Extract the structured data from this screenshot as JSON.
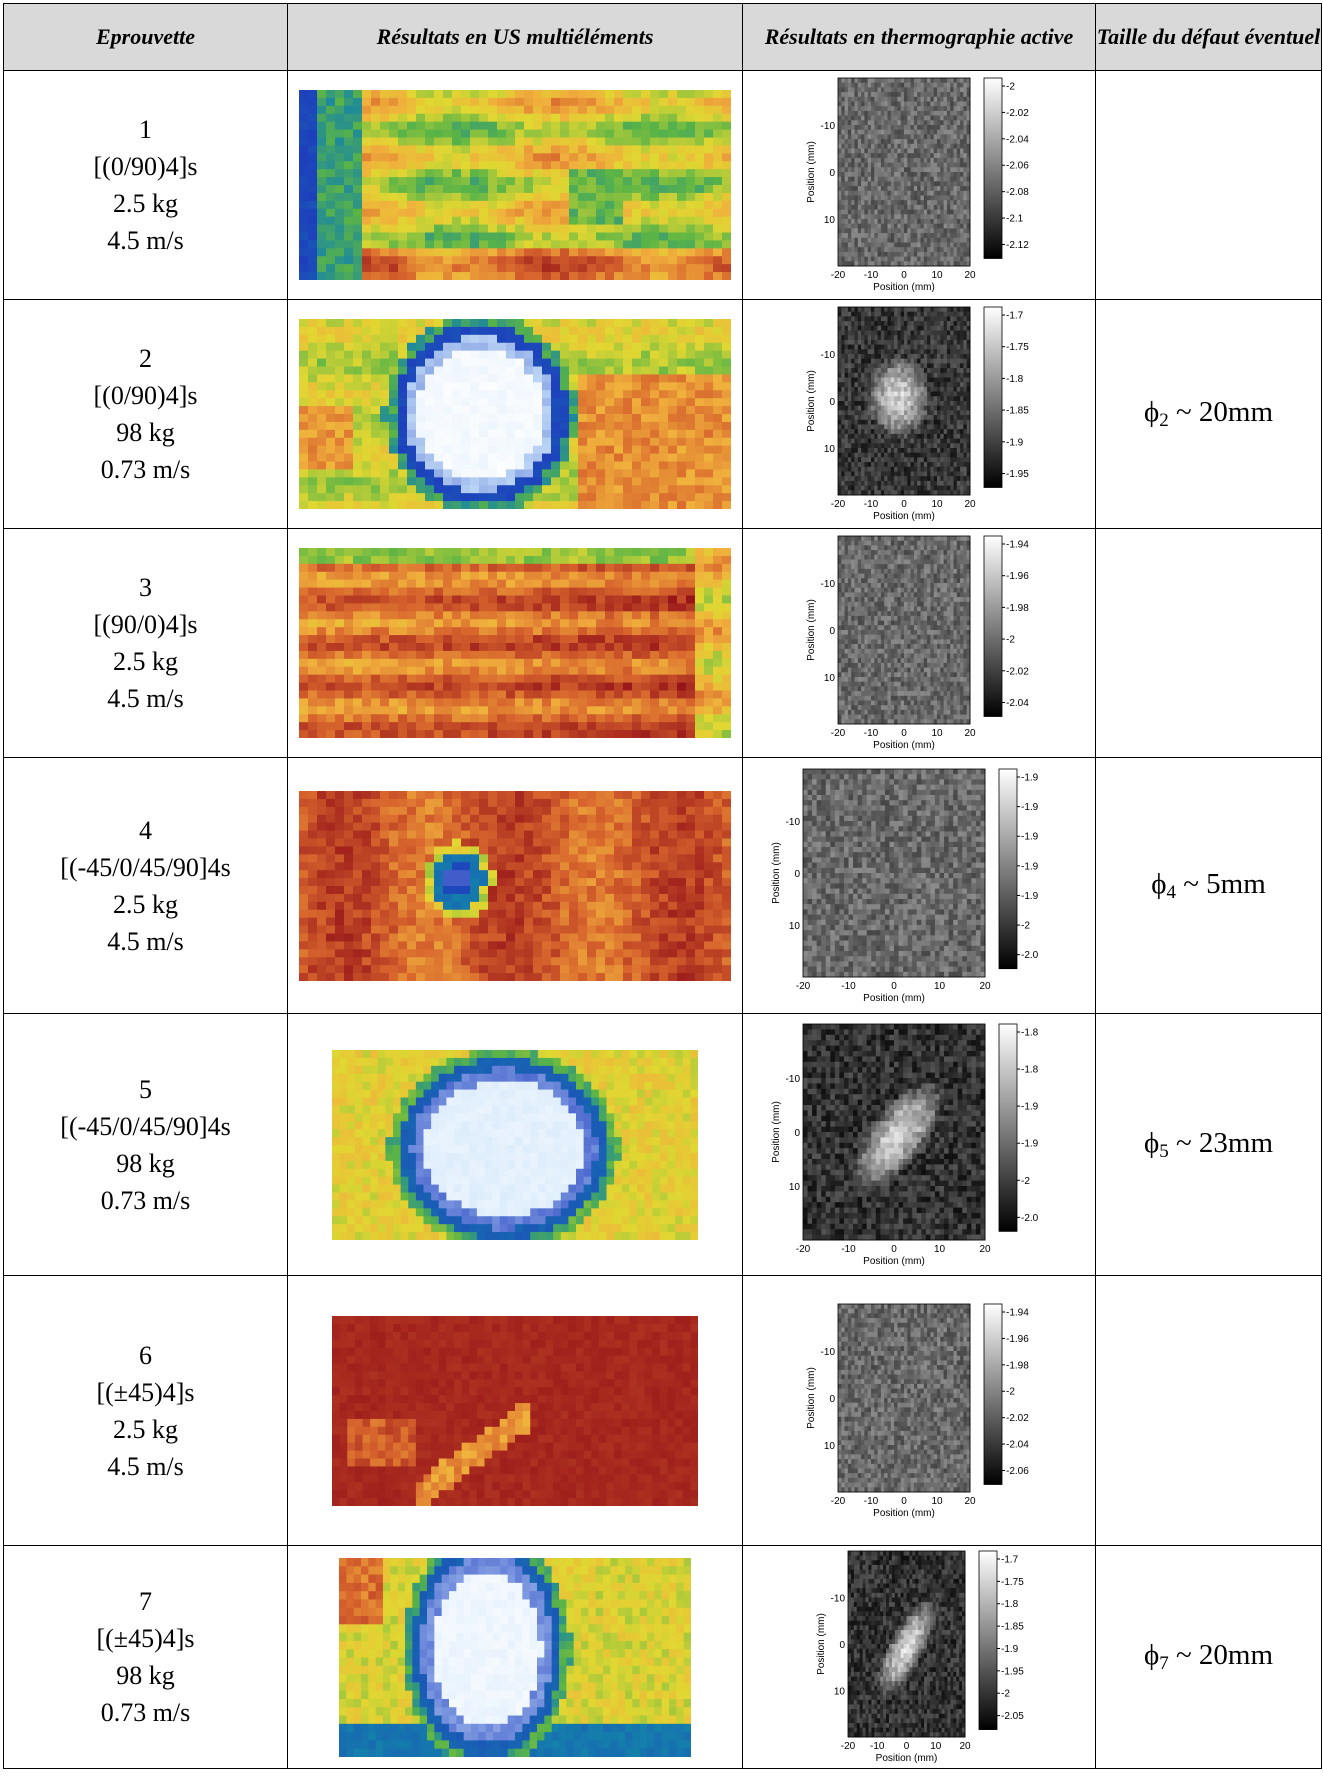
{
  "headers": {
    "specimen": "Eprouvette",
    "us": "Résultats en US multiéléments",
    "thermo": "Résultats en thermographie active",
    "defect": "Taille du défaut éventuel"
  },
  "rows": [
    {
      "num": "1",
      "layup": "[(0/90)4]s",
      "mass": "2.5 kg",
      "speed": "4.5 m/s",
      "us_pattern": "dispersed",
      "defect_symbol": "",
      "defect_sub": "",
      "defect_value": "",
      "thermo": {
        "xlabel": "Position (mm)",
        "ylabel": "Position (mm)",
        "xticks": [
          "-20",
          "-10",
          "0",
          "10",
          "20"
        ],
        "yticks": [
          "-10",
          "0",
          "10"
        ],
        "cbar_ticks": [
          "-2",
          "-2.02",
          "-2.04",
          "-2.06",
          "-2.08",
          "-2.1",
          "-2.12"
        ],
        "spot": "none"
      }
    },
    {
      "num": "2",
      "layup": "[(0/90)4]s",
      "mass": "98 kg",
      "speed": "0.73 m/s",
      "us_pattern": "circle",
      "defect_symbol": "ϕ",
      "defect_sub": "2",
      "defect_value": " ~ 20mm",
      "thermo": {
        "xlabel": "Position (mm)",
        "ylabel": "Position (mm)",
        "xticks": [
          "-20",
          "-10",
          "0",
          "10",
          "20"
        ],
        "yticks": [
          "-10",
          "0",
          "10"
        ],
        "cbar_ticks": [
          "-1.7",
          "-1.75",
          "-1.8",
          "-1.85",
          "-1.9",
          "-1.95"
        ],
        "spot": "round"
      }
    },
    {
      "num": "3",
      "layup": "[(90/0)4]s",
      "mass": "2.5 kg",
      "speed": "4.5 m/s",
      "us_pattern": "dispersed-red",
      "defect_symbol": "",
      "defect_sub": "",
      "defect_value": "",
      "thermo": {
        "xlabel": "Position (mm)",
        "ylabel": "Position (mm)",
        "xticks": [
          "-20",
          "-10",
          "0",
          "10",
          "20"
        ],
        "yticks": [
          "-10",
          "0",
          "10"
        ],
        "cbar_ticks": [
          "-1.94",
          "-1.96",
          "-1.98",
          "-2",
          "-2.02",
          "-2.04"
        ],
        "spot": "none"
      }
    },
    {
      "num": "4",
      "layup": "[(-45/0/45/90]4s",
      "mass": "2.5 kg",
      "speed": "4.5 m/s",
      "us_pattern": "small",
      "defect_symbol": "ϕ",
      "defect_sub": "4",
      "defect_value": " ~ 5mm",
      "thermo": {
        "xlabel": "Position (mm)",
        "ylabel": "Position (mm)",
        "xticks": [
          "-20",
          "-10",
          "0",
          "10",
          "20"
        ],
        "yticks": [
          "-10",
          "0",
          "10"
        ],
        "cbar_ticks": [
          "-1.9",
          "-1.9",
          "-1.9",
          "-1.9",
          "-1.9",
          "-2",
          "-2.0"
        ],
        "spot": "none"
      }
    },
    {
      "num": "5",
      "layup": "[(-45/0/45/90]4s",
      "mass": "98 kg",
      "speed": "0.73 m/s",
      "us_pattern": "blob",
      "defect_symbol": "ϕ",
      "defect_sub": "5",
      "defect_value": " ~ 23mm",
      "thermo": {
        "xlabel": "Position (mm)",
        "ylabel": "Position (mm)",
        "xticks": [
          "-20",
          "-10",
          "0",
          "10",
          "20"
        ],
        "yticks": [
          "-10",
          "0",
          "10"
        ],
        "cbar_ticks": [
          "-1.8",
          "-1.8",
          "-1.9",
          "-1.9",
          "-2",
          "-2.0"
        ],
        "spot": "diag"
      }
    },
    {
      "num": "6",
      "layup": "[(±45)4]s",
      "mass": "2.5 kg",
      "speed": "4.5 m/s",
      "us_pattern": "red",
      "defect_symbol": "",
      "defect_sub": "",
      "defect_value": "",
      "thermo": {
        "xlabel": "Position (mm)",
        "ylabel": "Position (mm)",
        "xticks": [
          "-20",
          "-10",
          "0",
          "10",
          "20"
        ],
        "yticks": [
          "-10",
          "0",
          "10"
        ],
        "cbar_ticks": [
          "-1.94",
          "-1.96",
          "-1.98",
          "-2",
          "-2.02",
          "-2.04",
          "-2.06"
        ],
        "spot": "none"
      }
    },
    {
      "num": "7",
      "layup": "[(±45)4]s",
      "mass": "98 kg",
      "speed": "0.73 m/s",
      "us_pattern": "tall",
      "defect_symbol": "ϕ",
      "defect_sub": "7",
      "defect_value": " ~ 20mm",
      "thermo": {
        "xlabel": "Position (mm)",
        "ylabel": "Position (mm)",
        "xticks": [
          "-20",
          "-10",
          "0",
          "10",
          "20"
        ],
        "yticks": [
          "-10",
          "0",
          "10"
        ],
        "cbar_ticks": [
          "-1.7",
          "-1.75",
          "-1.8",
          "-1.85",
          "-1.9",
          "-1.95",
          "-2",
          "-2.05"
        ],
        "spot": "diag2"
      }
    }
  ]
}
